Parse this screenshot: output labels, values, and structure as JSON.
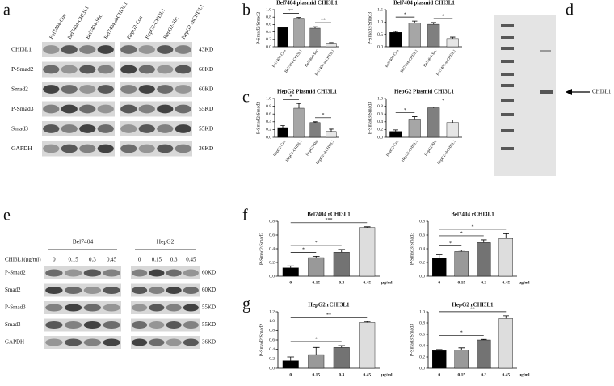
{
  "panel_labels": [
    "a",
    "b",
    "c",
    "d",
    "e",
    "f",
    "g"
  ],
  "blots": {
    "a": {
      "columns": [
        "Bel7404-Con",
        "Bel7404-CHI3L1",
        "Bel7404-Shc",
        "Bel7404-shCHI3L1",
        "HepG2-Con",
        "HepG2-CHI3L1",
        "HepG2-Shc",
        "HepG2-shCHI3L1"
      ],
      "rows": [
        {
          "name": "CHI3L1",
          "size": "43KD"
        },
        {
          "name": "P-Smad2",
          "size": "60KD"
        },
        {
          "name": "Smad2",
          "size": "60KD"
        },
        {
          "name": "P-Smad3",
          "size": "55KD"
        },
        {
          "name": "Smad3",
          "size": "55KD"
        },
        {
          "name": "GAPDH",
          "size": "36KD"
        }
      ]
    },
    "e": {
      "groups": [
        "Bel7404",
        "HepG2"
      ],
      "dose_label": "CHI3L1(μg/ml)",
      "doses": [
        "0",
        "0.15",
        "0.3",
        "0.45",
        "0",
        "0.15",
        "0.3",
        "0.45"
      ],
      "rows": [
        {
          "name": "P-Smad2",
          "size": "60KD"
        },
        {
          "name": "Smad2",
          "size": "60KD"
        },
        {
          "name": "P-Smad3",
          "size": "55KD"
        },
        {
          "name": "Smad3",
          "size": "55KD"
        },
        {
          "name": "GAPDH",
          "size": "36KD"
        }
      ]
    }
  },
  "gel": {
    "label": "CHI3L1"
  },
  "chart_data": [
    {
      "type": "bar",
      "title": "Bel7404 plasmid CHI3L1",
      "y_label": "P-Smad2/Smad2",
      "categories": [
        "Bel7404-Con",
        "Bel7404-CHI3L1",
        "Bel7404-Shc",
        "Bel7404-shCHI3L1"
      ],
      "values": [
        0.52,
        0.77,
        0.5,
        0.1
      ],
      "errors": [
        0.01,
        0.02,
        0.04,
        0.01
      ],
      "colors": [
        "#000000",
        "#a6a6a6",
        "#7f7f7f",
        "#e6e6e6"
      ],
      "ylim": [
        0,
        1.0
      ],
      "yticks": [
        {
          "value": 0,
          "label": "0.0"
        },
        0.2,
        0.4,
        0.6,
        0.8,
        {
          "value": 1.0,
          "label": "1.0"
        }
      ],
      "annotations": [
        {
          "text": "**",
          "between": [
            "Bel7404-Con",
            "Bel7404-CHI3L1"
          ]
        },
        {
          "text": "**",
          "between": [
            "Bel7404-Shc",
            "Bel7404-shCHI3L1"
          ]
        }
      ]
    },
    {
      "type": "bar",
      "title": "Bel7404 plasmid CHI3L1",
      "y_label": "P-Smad3/Smad3",
      "categories": [
        "Bel7404-Con",
        "Bel7404-CHI3L1",
        "Bel7404-Shc",
        "Bel7404-shCHI3L1"
      ],
      "values": [
        0.58,
        0.97,
        0.91,
        0.33
      ],
      "errors": [
        0.04,
        0.07,
        0.07,
        0.06
      ],
      "colors": [
        "#000000",
        "#a6a6a6",
        "#7f7f7f",
        "#e6e6e6"
      ],
      "ylim": [
        0,
        1.5
      ],
      "yticks": [
        {
          "value": 0,
          "label": "0.0"
        },
        0.5,
        {
          "value": 1.0,
          "label": "1.0"
        },
        1.5
      ],
      "annotations": [
        {
          "text": "*",
          "between": [
            "Bel7404-Con",
            "Bel7404-CHI3L1"
          ]
        },
        {
          "text": "*",
          "between": [
            "Bel7404-Shc",
            "Bel7404-shCHI3L1"
          ]
        }
      ]
    },
    {
      "type": "bar",
      "title": "HepG2 Plasmid CHI3L1",
      "y_label": "P-Smad2/Smad2",
      "categories": [
        "HepG2-Con",
        "HepG2-CHI3L1",
        "HepG2-Shc",
        "HepG2-shCHI3L1"
      ],
      "values": [
        0.25,
        0.75,
        0.38,
        0.15
      ],
      "errors": [
        0.05,
        0.12,
        0.02,
        0.06
      ],
      "colors": [
        "#000000",
        "#a6a6a6",
        "#7f7f7f",
        "#e6e6e6"
      ],
      "ylim": [
        0,
        1.0
      ],
      "yticks": [
        {
          "value": 0,
          "label": "0.0"
        },
        0.2,
        0.4,
        0.6,
        0.8,
        {
          "value": 1.0,
          "label": "1.0"
        }
      ],
      "annotations": [
        {
          "text": "*",
          "between": [
            "HepG2-Con",
            "HepG2-CHI3L1"
          ]
        },
        {
          "text": "*",
          "between": [
            "HepG2-Shc",
            "HepG2-shCHI3L1"
          ]
        }
      ]
    },
    {
      "type": "bar",
      "title": "HepG2 Plasmid CHI3L1",
      "y_label": "P-Smad3/Smad3",
      "categories": [
        "HepG2-Con",
        "HepG2-CHI3L1",
        "HepG2-Shc",
        "HepG2-shCHI3L1"
      ],
      "values": [
        0.15,
        0.47,
        0.76,
        0.38
      ],
      "errors": [
        0.04,
        0.06,
        0.02,
        0.07
      ],
      "colors": [
        "#000000",
        "#a6a6a6",
        "#7f7f7f",
        "#e6e6e6"
      ],
      "ylim": [
        0,
        1.0
      ],
      "yticks": [
        {
          "value": 0,
          "label": "0.0"
        },
        0.2,
        0.4,
        0.6,
        0.8,
        {
          "value": 1.0,
          "label": "1.0"
        }
      ],
      "annotations": [
        {
          "text": "*",
          "between": [
            "HepG2-Con",
            "HepG2-CHI3L1"
          ]
        },
        {
          "text": "*",
          "between": [
            "HepG2-Shc",
            "HepG2-shCHI3L1"
          ]
        }
      ]
    },
    {
      "type": "bar",
      "title": "Bel7404 rCHI3L1",
      "y_label": "P-Smad2/Smad2",
      "x_unit": "μg/ml",
      "categories": [
        "0",
        "0.15",
        "0.3",
        "0.45"
      ],
      "values": [
        0.12,
        0.27,
        0.35,
        0.71
      ],
      "errors": [
        0.03,
        0.02,
        0.04,
        0.01
      ],
      "colors": [
        "#000000",
        "#999999",
        "#737373",
        "#dddddd"
      ],
      "ylim": [
        0,
        0.8
      ],
      "yticks": [
        {
          "value": 0,
          "label": "0.0"
        },
        0.2,
        0.4,
        0.6,
        0.8
      ],
      "annotations": [
        {
          "text": "*",
          "between": [
            "0",
            "0.15"
          ]
        },
        {
          "text": "*",
          "between": [
            "0",
            "0.3"
          ]
        },
        {
          "text": "***",
          "between": [
            "0",
            "0.45"
          ]
        }
      ]
    },
    {
      "type": "bar",
      "title": "Bel7404 rCHI3L1",
      "y_label": "P-Smad3/Smad3",
      "x_unit": "μg/ml",
      "categories": [
        "0",
        "0.15",
        "0.3",
        "0.45"
      ],
      "values": [
        0.26,
        0.36,
        0.49,
        0.55
      ],
      "errors": [
        0.05,
        0.02,
        0.04,
        0.07
      ],
      "colors": [
        "#000000",
        "#999999",
        "#737373",
        "#dddddd"
      ],
      "ylim": [
        0,
        0.8
      ],
      "yticks": [
        {
          "value": 0,
          "label": "0.0"
        },
        0.2,
        0.4,
        0.6,
        0.8
      ],
      "annotations": [
        {
          "text": "*",
          "between": [
            "0",
            "0.15"
          ]
        },
        {
          "text": "*",
          "between": [
            "0",
            "0.3"
          ]
        },
        {
          "text": "*",
          "between": [
            "0",
            "0.45"
          ]
        }
      ]
    },
    {
      "type": "bar",
      "title": "HepG2 rCHI3L1",
      "y_label": "P-Smad2/Smad2",
      "x_unit": "μg/ml",
      "categories": [
        "0",
        "0.15",
        "0.3",
        "0.45"
      ],
      "values": [
        0.16,
        0.29,
        0.44,
        0.97
      ],
      "errors": [
        0.08,
        0.15,
        0.04,
        0.02
      ],
      "colors": [
        "#000000",
        "#999999",
        "#737373",
        "#dddddd"
      ],
      "ylim": [
        0,
        1.2
      ],
      "yticks": [
        {
          "value": 0,
          "label": "0.0"
        },
        0.2,
        0.4,
        0.6,
        0.8,
        {
          "value": 1.0,
          "label": "1.0"
        },
        1.2
      ],
      "annotations": [
        {
          "text": "*",
          "between": [
            "0",
            "0.3"
          ]
        },
        {
          "text": "**",
          "between": [
            "0",
            "0.45"
          ]
        }
      ]
    },
    {
      "type": "bar",
      "title": "HepG2 rCHI3L1",
      "y_label": "P-Smad3/Smad3",
      "x_unit": "μg/ml",
      "categories": [
        "0",
        "0.15",
        "0.3",
        "0.45"
      ],
      "values": [
        0.31,
        0.32,
        0.5,
        0.88
      ],
      "errors": [
        0.02,
        0.04,
        0.01,
        0.05
      ],
      "colors": [
        "#000000",
        "#999999",
        "#737373",
        "#dddddd"
      ],
      "ylim": [
        0,
        1.0
      ],
      "yticks": [
        {
          "value": 0,
          "label": "0.0"
        },
        0.2,
        0.4,
        0.6,
        0.8,
        {
          "value": 1.0,
          "label": "1.0"
        }
      ],
      "annotations": [
        {
          "text": "*",
          "between": [
            "0",
            "0.3"
          ]
        },
        {
          "text": "**",
          "between": [
            "0",
            "0.45"
          ]
        }
      ]
    }
  ]
}
